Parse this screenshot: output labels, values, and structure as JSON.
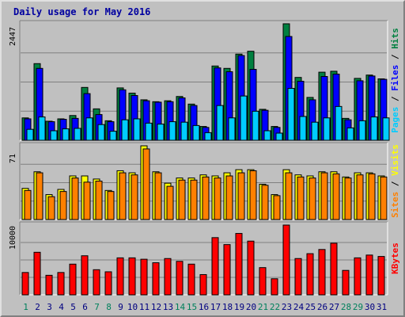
{
  "chart_data": {
    "type": "bar",
    "title": "Daily usage for May 2016",
    "categories": [
      "1",
      "2",
      "3",
      "4",
      "5",
      "6",
      "7",
      "8",
      "9",
      "10",
      "11",
      "12",
      "13",
      "14",
      "15",
      "16",
      "17",
      "18",
      "19",
      "20",
      "21",
      "22",
      "23",
      "24",
      "25",
      "26",
      "27",
      "28",
      "29",
      "30",
      "31"
    ],
    "weekend_days": [
      "1",
      "7",
      "8",
      "14",
      "15",
      "21",
      "22",
      "28",
      "29"
    ],
    "panels": [
      {
        "key": "top",
        "ymax_label": "2447",
        "ylim": [
          0,
          2447
        ],
        "legend": [
          {
            "text": "Pages",
            "color": "#00ccff"
          },
          {
            "text": "Files",
            "color": "#0000ff"
          },
          {
            "text": "Hits",
            "color": "#008040"
          }
        ],
        "separator_color": "#000000",
        "series": [
          {
            "name": "Hits",
            "color": "#008040",
            "values": [
              470,
              1610,
              400,
              450,
              520,
              1110,
              660,
              410,
              1100,
              990,
              850,
              810,
              830,
              920,
              760,
              290,
              1560,
              1510,
              1810,
              1870,
              650,
              290,
              2447,
              1320,
              900,
              1430,
              1450,
              460,
              1300,
              1370,
              1290
            ]
          },
          {
            "name": "Files",
            "color": "#0000ff",
            "values": [
              450,
              1510,
              390,
              440,
              460,
              980,
              540,
              390,
              1060,
              940,
              830,
              800,
              810,
              890,
              730,
              270,
              1520,
              1440,
              1780,
              1490,
              630,
              270,
              2180,
              1240,
              850,
              1340,
              1390,
              430,
              1250,
              1350,
              1280
            ]
          },
          {
            "name": "Pages",
            "color": "#00ccff",
            "values": [
              230,
              490,
              200,
              240,
              250,
              470,
              330,
              190,
              430,
              450,
              360,
              340,
              390,
              380,
              310,
              160,
              730,
              470,
              930,
              610,
              200,
              150,
              1090,
              500,
              380,
              470,
              710,
              260,
              410,
              490,
              470
            ]
          }
        ]
      },
      {
        "key": "mid",
        "ymax_label": "71",
        "ylim": [
          0,
          71
        ],
        "legend": [
          {
            "text": "Sites",
            "color": "#ff8000"
          },
          {
            "text": "Visits",
            "color": "#ffff00"
          }
        ],
        "separator_color": "#000000",
        "series": [
          {
            "name": "Visits",
            "color": "#ffff00",
            "values": [
              30,
              46,
              24,
              29,
              42,
              42,
              39,
              28,
              47,
              45,
              71,
              46,
              35,
              40,
              40,
              43,
              42,
              45,
              48,
              48,
              34,
              24,
              48,
              43,
              42,
              46,
              46,
              41,
              45,
              45,
              42
            ]
          },
          {
            "name": "Sites",
            "color": "#ff8000",
            "values": [
              28,
              45,
              22,
              27,
              40,
              36,
              37,
              27,
              45,
              43,
              68,
              45,
              32,
              38,
              38,
              41,
              40,
              42,
              45,
              47,
              33,
              23,
              45,
              41,
              40,
              45,
              44,
              40,
              43,
              44,
              41
            ]
          }
        ]
      },
      {
        "key": "bottom",
        "ymax_label": "10000",
        "ylim": [
          0,
          10000
        ],
        "legend": [
          {
            "text": "KBytes",
            "color": "#ff0000"
          }
        ],
        "separator_color": "#000000",
        "series": [
          {
            "name": "KBytes",
            "color": "#ff0000",
            "values": [
              3200,
              6100,
              2800,
              3200,
              4400,
              5600,
              3600,
              3300,
              5300,
              5300,
              5100,
              4600,
              5200,
              4800,
              4400,
              2900,
              8200,
              7200,
              8800,
              7700,
              3900,
              2300,
              10000,
              5200,
              5900,
              6500,
              7400,
              3500,
              5300,
              5700,
              5500
            ]
          }
        ]
      }
    ]
  }
}
